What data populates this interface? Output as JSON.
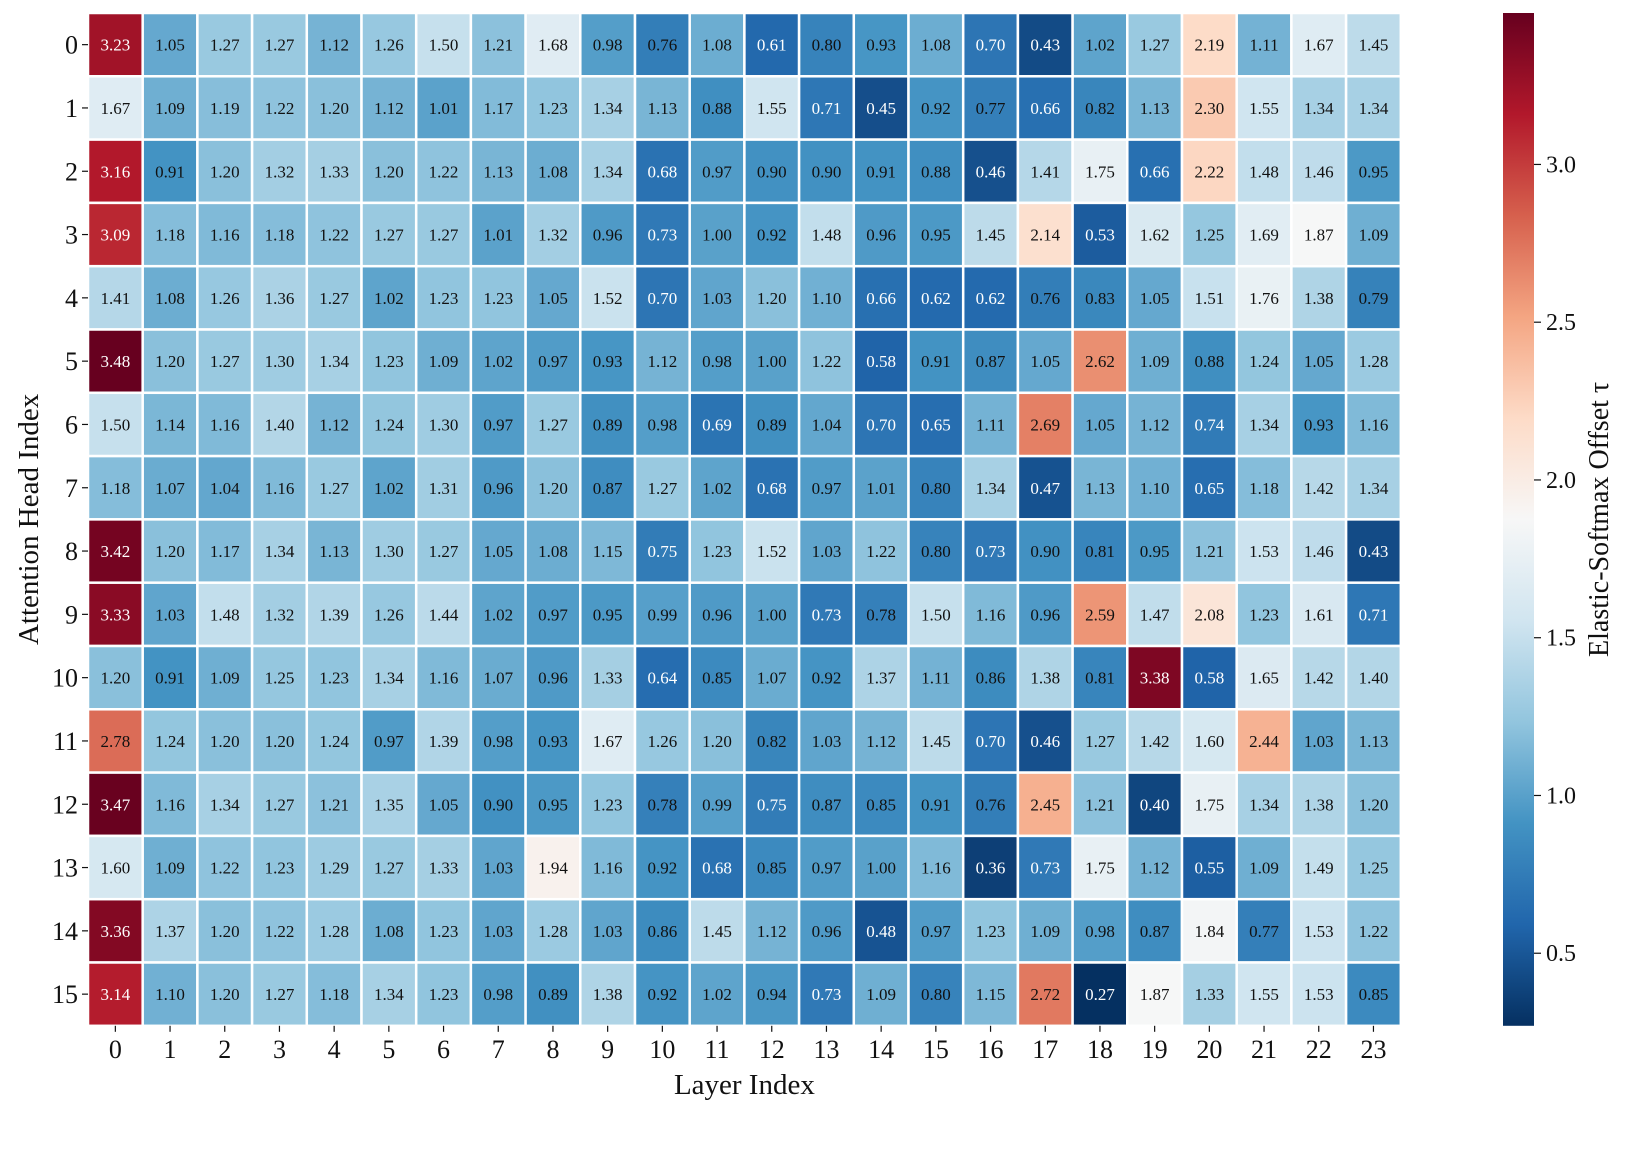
{
  "chart_data": {
    "type": "heatmap",
    "xlabel": "Layer Index",
    "ylabel": "Attention Head Index",
    "colorbar_label": "Elastic-Softmax Offset τ",
    "x_categories": [
      "0",
      "1",
      "2",
      "3",
      "4",
      "5",
      "6",
      "7",
      "8",
      "9",
      "10",
      "11",
      "12",
      "13",
      "14",
      "15",
      "16",
      "17",
      "18",
      "19",
      "20",
      "21",
      "22",
      "23"
    ],
    "y_categories": [
      "0",
      "1",
      "2",
      "3",
      "4",
      "5",
      "6",
      "7",
      "8",
      "9",
      "10",
      "11",
      "12",
      "13",
      "14",
      "15"
    ],
    "value_range": [
      0.27,
      3.48
    ],
    "colorbar_ticks": [
      0.5,
      1.0,
      1.5,
      2.0,
      2.5,
      3.0
    ],
    "colorbar_tick_labels": [
      "0.5",
      "1.0",
      "1.5",
      "2.0",
      "2.5",
      "3.0"
    ],
    "colormap": "RdBu_r",
    "colormap_stops": [
      "#053061",
      "#2166ac",
      "#4393c3",
      "#92c5de",
      "#d1e5f0",
      "#f7f7f7",
      "#fddbc7",
      "#f4a582",
      "#d6604d",
      "#b2182b",
      "#67001f"
    ],
    "cell_border_color": "#ffffff",
    "grid": false,
    "colorbar_position": "right",
    "values": [
      [
        "3.23",
        "1.05",
        "1.27",
        "1.27",
        "1.12",
        "1.26",
        "1.50",
        "1.21",
        "1.68",
        "0.98",
        "0.76",
        "1.08",
        "0.61",
        "0.80",
        "0.93",
        "1.08",
        "0.70",
        "0.43",
        "1.02",
        "1.27",
        "2.19",
        "1.11",
        "1.67",
        "1.45"
      ],
      [
        "1.67",
        "1.09",
        "1.19",
        "1.22",
        "1.20",
        "1.12",
        "1.01",
        "1.17",
        "1.23",
        "1.34",
        "1.13",
        "0.88",
        "1.55",
        "0.71",
        "0.45",
        "0.92",
        "0.77",
        "0.66",
        "0.82",
        "1.13",
        "2.30",
        "1.55",
        "1.34",
        "1.34"
      ],
      [
        "3.16",
        "0.91",
        "1.20",
        "1.32",
        "1.33",
        "1.20",
        "1.22",
        "1.13",
        "1.08",
        "1.34",
        "0.68",
        "0.97",
        "0.90",
        "0.90",
        "0.91",
        "0.88",
        "0.46",
        "1.41",
        "1.75",
        "0.66",
        "2.22",
        "1.48",
        "1.46",
        "0.95"
      ],
      [
        "3.09",
        "1.18",
        "1.16",
        "1.18",
        "1.22",
        "1.27",
        "1.27",
        "1.01",
        "1.32",
        "0.96",
        "0.73",
        "1.00",
        "0.92",
        "1.48",
        "0.96",
        "0.95",
        "1.45",
        "2.14",
        "0.53",
        "1.62",
        "1.25",
        "1.69",
        "1.87",
        "1.09"
      ],
      [
        "1.41",
        "1.08",
        "1.26",
        "1.36",
        "1.27",
        "1.02",
        "1.23",
        "1.23",
        "1.05",
        "1.52",
        "0.70",
        "1.03",
        "1.20",
        "1.10",
        "0.66",
        "0.62",
        "0.62",
        "0.76",
        "0.83",
        "1.05",
        "1.51",
        "1.76",
        "1.38",
        "0.79"
      ],
      [
        "3.48",
        "1.20",
        "1.27",
        "1.30",
        "1.34",
        "1.23",
        "1.09",
        "1.02",
        "0.97",
        "0.93",
        "1.12",
        "0.98",
        "1.00",
        "1.22",
        "0.58",
        "0.91",
        "0.87",
        "1.05",
        "2.62",
        "1.09",
        "0.88",
        "1.24",
        "1.05",
        "1.28"
      ],
      [
        "1.50",
        "1.14",
        "1.16",
        "1.40",
        "1.12",
        "1.24",
        "1.30",
        "0.97",
        "1.27",
        "0.89",
        "0.98",
        "0.69",
        "0.89",
        "1.04",
        "0.70",
        "0.65",
        "1.11",
        "2.69",
        "1.05",
        "1.12",
        "0.74",
        "1.34",
        "0.93",
        "1.16"
      ],
      [
        "1.18",
        "1.07",
        "1.04",
        "1.16",
        "1.27",
        "1.02",
        "1.31",
        "0.96",
        "1.20",
        "0.87",
        "1.27",
        "1.02",
        "0.68",
        "0.97",
        "1.01",
        "0.80",
        "1.34",
        "0.47",
        "1.13",
        "1.10",
        "0.65",
        "1.18",
        "1.42",
        "1.34"
      ],
      [
        "3.42",
        "1.20",
        "1.17",
        "1.34",
        "1.13",
        "1.30",
        "1.27",
        "1.05",
        "1.08",
        "1.15",
        "0.75",
        "1.23",
        "1.52",
        "1.03",
        "1.22",
        "0.80",
        "0.73",
        "0.90",
        "0.81",
        "0.95",
        "1.21",
        "1.53",
        "1.46",
        "0.43"
      ],
      [
        "3.33",
        "1.03",
        "1.48",
        "1.32",
        "1.39",
        "1.26",
        "1.44",
        "1.02",
        "0.97",
        "0.95",
        "0.99",
        "0.96",
        "1.00",
        "0.73",
        "0.78",
        "1.50",
        "1.16",
        "0.96",
        "2.59",
        "1.47",
        "2.08",
        "1.23",
        "1.61",
        "0.71"
      ],
      [
        "1.20",
        "0.91",
        "1.09",
        "1.25",
        "1.23",
        "1.34",
        "1.16",
        "1.07",
        "0.96",
        "1.33",
        "0.64",
        "0.85",
        "1.07",
        "0.92",
        "1.37",
        "1.11",
        "0.86",
        "1.38",
        "0.81",
        "3.38",
        "0.58",
        "1.65",
        "1.42",
        "1.40"
      ],
      [
        "2.78",
        "1.24",
        "1.20",
        "1.20",
        "1.24",
        "0.97",
        "1.39",
        "0.98",
        "0.93",
        "1.67",
        "1.26",
        "1.20",
        "0.82",
        "1.03",
        "1.12",
        "1.45",
        "0.70",
        "0.46",
        "1.27",
        "1.42",
        "1.60",
        "2.44",
        "1.03",
        "1.13"
      ],
      [
        "3.47",
        "1.16",
        "1.34",
        "1.27",
        "1.21",
        "1.35",
        "1.05",
        "0.90",
        "0.95",
        "1.23",
        "0.78",
        "0.99",
        "0.75",
        "0.87",
        "0.85",
        "0.91",
        "0.76",
        "2.45",
        "1.21",
        "0.40",
        "1.75",
        "1.34",
        "1.38",
        "1.20"
      ],
      [
        "1.60",
        "1.09",
        "1.22",
        "1.23",
        "1.29",
        "1.27",
        "1.33",
        "1.03",
        "1.94",
        "1.16",
        "0.92",
        "0.68",
        "0.85",
        "0.97",
        "1.00",
        "1.16",
        "0.36",
        "0.73",
        "1.75",
        "1.12",
        "0.55",
        "1.09",
        "1.49",
        "1.25"
      ],
      [
        "3.36",
        "1.37",
        "1.20",
        "1.22",
        "1.28",
        "1.08",
        "1.23",
        "1.03",
        "1.28",
        "1.03",
        "0.86",
        "1.45",
        "1.12",
        "0.96",
        "0.48",
        "0.97",
        "1.23",
        "1.09",
        "0.98",
        "0.87",
        "1.84",
        "0.77",
        "1.53",
        "1.22"
      ],
      [
        "3.14",
        "1.10",
        "1.20",
        "1.27",
        "1.18",
        "1.34",
        "1.23",
        "0.98",
        "0.89",
        "1.38",
        "0.92",
        "1.02",
        "0.94",
        "0.73",
        "1.09",
        "0.80",
        "1.15",
        "2.72",
        "0.27",
        "1.87",
        "1.33",
        "1.55",
        "1.53",
        "0.85"
      ]
    ]
  }
}
